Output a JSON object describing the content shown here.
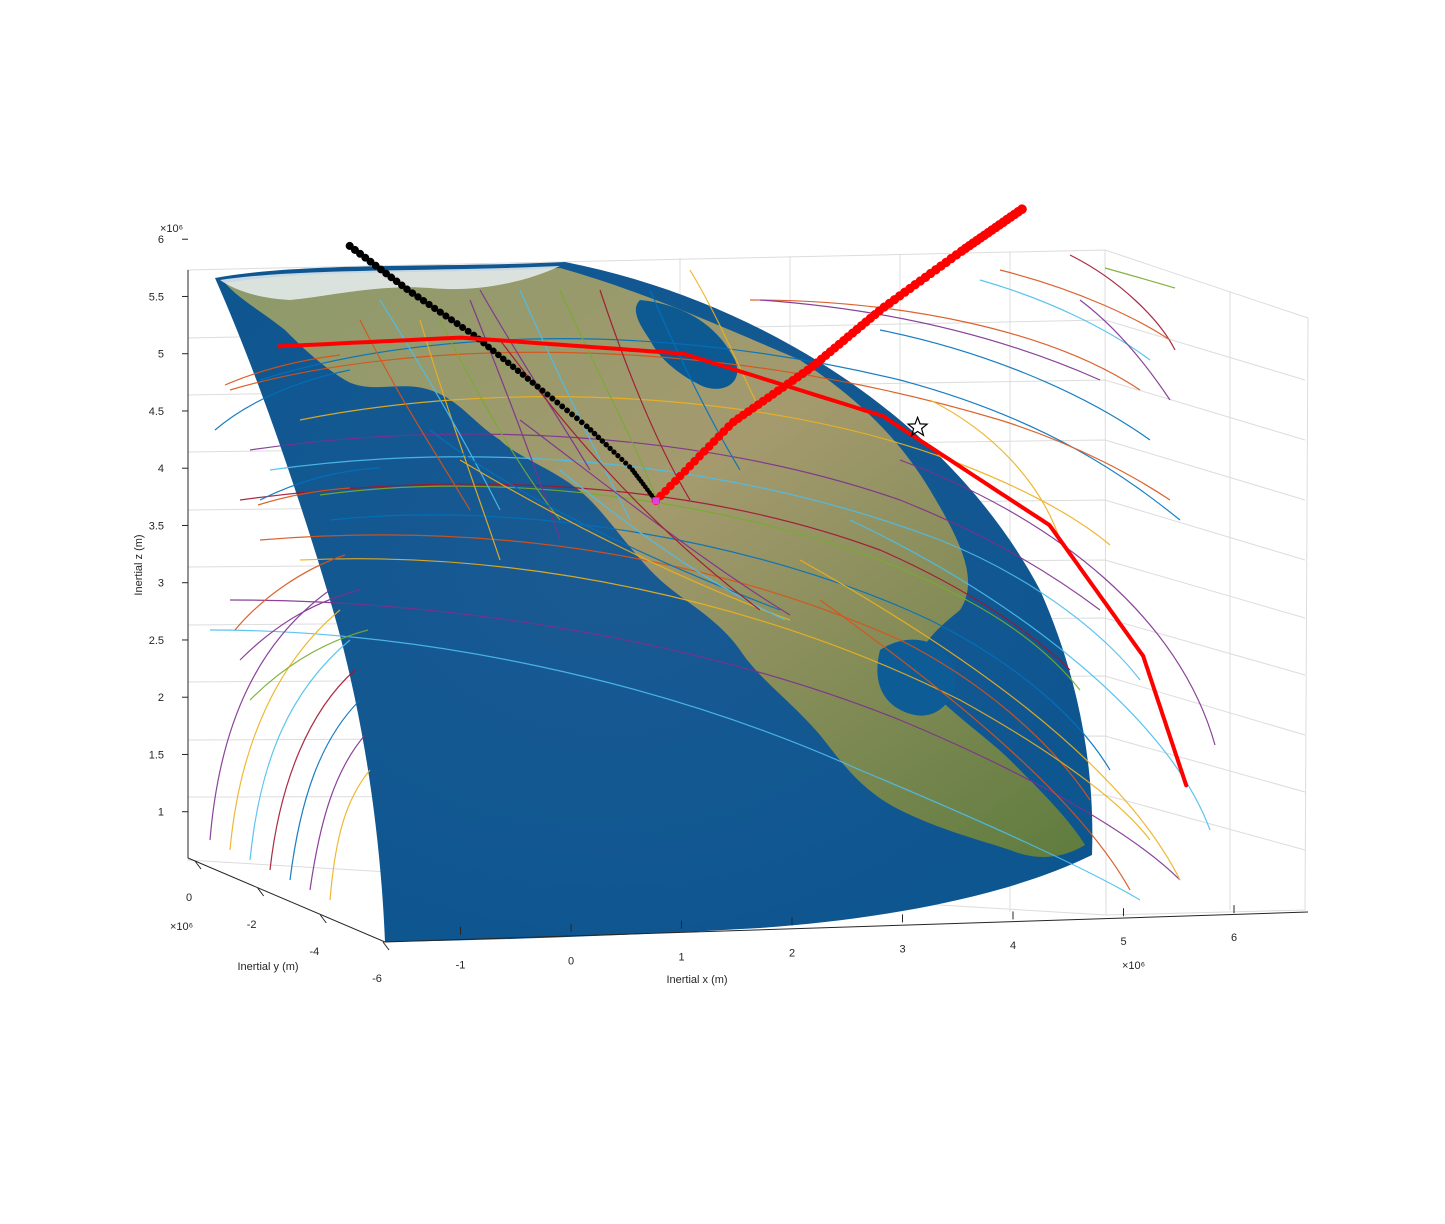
{
  "chart_data": {
    "type": "scatter",
    "projection": "3d",
    "title": "",
    "xlabel": "Inertial x (m)",
    "ylabel": "Inertial y (m)",
    "zlabel": "Inertial z (m)",
    "x_exponent": "×10⁶",
    "y_exponent": "×10⁶",
    "z_exponent": "×10⁶",
    "x_ticks": [
      "-1",
      "0",
      "1",
      "2",
      "3",
      "4",
      "5",
      "6"
    ],
    "y_ticks": [
      "0",
      "-2",
      "-4",
      "-6"
    ],
    "z_ticks": [
      "1",
      "1.5",
      "2",
      "2.5",
      "3",
      "3.5",
      "4",
      "4.5",
      "5",
      "5.5",
      "6"
    ],
    "xlim": [
      -1.8,
      6.7
    ],
    "ylim": [
      -6,
      0.5
    ],
    "zlim": [
      0.9,
      6.2
    ],
    "grid": true,
    "surface": "earth-globe-north-america",
    "series": [
      {
        "marker": "black-circles",
        "color": "#000000",
        "x": [
          -1.35,
          -0.6,
          0.1,
          0.7,
          1.3,
          1.75,
          2.0
        ],
        "y": [
          -2.2,
          -2.9,
          -3.3,
          -3.6,
          -3.9,
          -4.05,
          -4.15
        ],
        "z": [
          5.6,
          5.1,
          4.65,
          4.2,
          3.75,
          3.35,
          3.05
        ]
      },
      {
        "marker": "red-circles",
        "color": "#ff0000",
        "x": [
          2.0,
          2.5,
          3.0,
          3.4,
          3.9,
          4.2
        ],
        "y": [
          -4.15,
          -3.5,
          -2.8,
          -2.0,
          -1.2,
          -0.4
        ],
        "z": [
          3.05,
          3.8,
          4.35,
          4.95,
          5.55,
          6.0
        ]
      },
      {
        "marker": "red-line",
        "color": "#ff0000",
        "x": [
          -1.9,
          -0.4,
          1.4,
          3.0,
          4.3,
          5.0,
          5.3
        ],
        "y": [
          -2.5,
          -2.0,
          -1.3,
          -0.6,
          0.1,
          0.6,
          0.9
        ],
        "z": [
          4.7,
          4.8,
          4.7,
          4.2,
          3.3,
          2.2,
          1.1
        ]
      }
    ],
    "annotations": [
      {
        "marker": "black-star",
        "x": 3.3,
        "y": -0.55,
        "z": 4.1
      },
      {
        "marker": "magenta-square",
        "x": 2.0,
        "y": -4.15,
        "z": 3.05
      }
    ],
    "trajectory_colors": [
      "#0072bd",
      "#d95319",
      "#edb120",
      "#7e2f8e",
      "#77ac30",
      "#4dbeee",
      "#a2142f"
    ]
  }
}
